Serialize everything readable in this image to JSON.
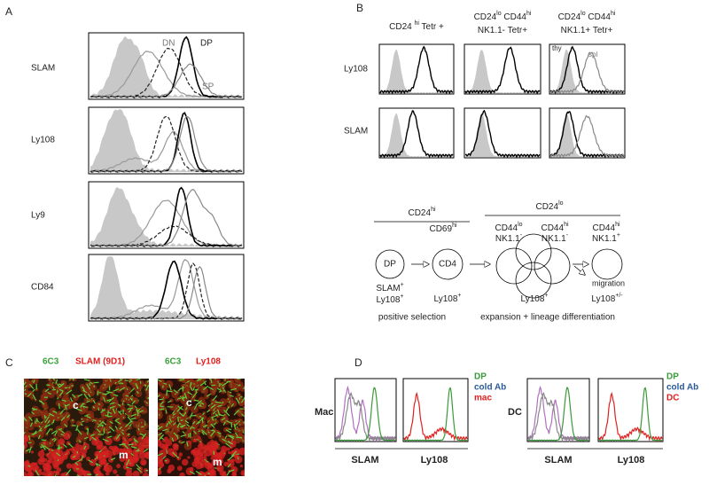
{
  "panel_a": {
    "label": "A",
    "rows": [
      "SLAM",
      "Ly108",
      "Ly9",
      "CD84"
    ],
    "curve_labels": [
      "DN",
      "DP",
      "SP"
    ]
  },
  "panel_b": {
    "label": "B",
    "columns": [
      [
        [
          {
            "t": "CD24 "
          },
          {
            "s": "hi"
          },
          {
            "t": " Tetr +"
          }
        ]
      ],
      [
        [
          {
            "t": "CD24"
          },
          {
            "s": "lo"
          },
          {
            "t": " CD44"
          },
          {
            "s": "hi"
          }
        ],
        [
          {
            "t": "NK1.1- Tetr+"
          }
        ]
      ],
      [
        [
          {
            "t": "CD24"
          },
          {
            "s": "lo"
          },
          {
            "t": " CD44"
          },
          {
            "s": "hi"
          }
        ],
        [
          {
            "t": "NK1.1+ Tetr+"
          }
        ]
      ]
    ],
    "rows": [
      "Ly108",
      "SLAM"
    ],
    "curve_labels": [
      "thy",
      "spl"
    ]
  },
  "diagram": {
    "cd24hi": [
      {
        "t": "CD24"
      },
      {
        "s": "hi"
      }
    ],
    "cd24lo": [
      {
        "t": "CD24"
      },
      {
        "s": "lo"
      }
    ],
    "cd69hi": [
      {
        "t": "CD69"
      },
      {
        "s": "hi"
      }
    ],
    "stages": [
      [
        [
          {
            "t": "CD44"
          },
          {
            "s": "lo"
          }
        ],
        [
          {
            "t": "NK1.1"
          },
          {
            "s": "-"
          }
        ]
      ],
      [
        [
          {
            "t": "CD44"
          },
          {
            "s": "hi"
          }
        ],
        [
          {
            "t": "NK1.1"
          },
          {
            "s": "-"
          }
        ]
      ],
      [
        [
          {
            "t": "CD44"
          },
          {
            "s": "hi"
          }
        ],
        [
          {
            "t": "NK1.1"
          },
          {
            "s": "+"
          }
        ]
      ]
    ],
    "nodes": [
      "DP",
      "CD4"
    ],
    "markers": [
      [
        [
          {
            "t": "SLAM"
          },
          {
            "s": "+"
          }
        ],
        [
          {
            "t": "Ly108"
          },
          {
            "s": "+"
          }
        ]
      ],
      [
        [
          {
            "t": "Ly108"
          },
          {
            "s": "+"
          }
        ]
      ],
      [
        [
          {
            "t": "Ly108"
          },
          {
            "s": "+"
          }
        ]
      ],
      [
        [
          {
            "t": "Ly108"
          },
          {
            "s": "+/-"
          }
        ]
      ]
    ],
    "migration": "migration",
    "captions": [
      "positive selection",
      "expansion + lineage differentiation"
    ]
  },
  "panel_c": {
    "label": "C",
    "images": [
      {
        "stains": [
          "6C3",
          "SLAM (9D1)"
        ],
        "regions": [
          "c",
          "m"
        ]
      },
      {
        "stains": [
          "6C3",
          "Ly108"
        ],
        "regions": [
          "c",
          "m"
        ]
      }
    ]
  },
  "panel_d": {
    "label": "D",
    "groups": [
      {
        "cell": "Mac",
        "legend": [
          "DP",
          "cold Ab",
          "mac"
        ],
        "axes": [
          "SLAM",
          "Ly108"
        ]
      },
      {
        "cell": "DC",
        "legend": [
          "DP",
          "cold Ab",
          "DC"
        ],
        "axes": [
          "SLAM",
          "Ly108"
        ]
      }
    ]
  }
}
